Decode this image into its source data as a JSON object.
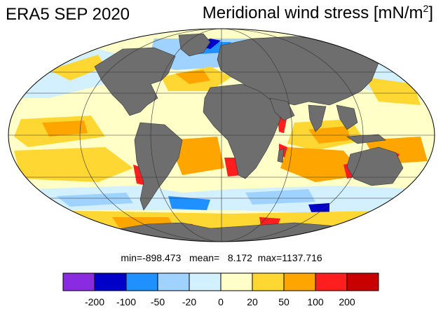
{
  "header": {
    "title_left": "ERA5 SEP 2020",
    "title_right_main": "Meridional wind stress [mN/m",
    "title_right_sup": "2",
    "title_right_end": "]"
  },
  "stats": {
    "text": "min=-898.473   mean=   8.172  max=1137.716"
  },
  "colorbar": {
    "colors": [
      "#8a2be2",
      "#0000c8",
      "#1e90ff",
      "#a0d2ff",
      "#d2f0ff",
      "#ffffc8",
      "#ffd732",
      "#ffa500",
      "#ff1e1e",
      "#c80000"
    ],
    "labels": [
      "-200",
      "-100",
      "-50",
      "-20",
      "0",
      "20",
      "50",
      "100",
      "200"
    ]
  },
  "map": {
    "projection": "mollweide",
    "land_color": "#6e6e6e",
    "ocean_base_color": "#ffffc8",
    "grid": true
  }
}
